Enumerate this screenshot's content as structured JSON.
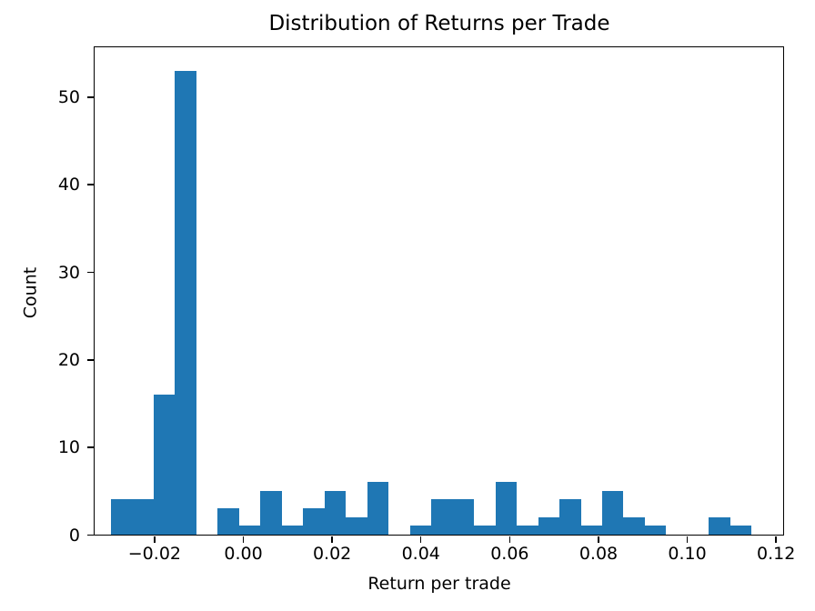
{
  "chart_data": {
    "type": "bar",
    "subtype": "histogram",
    "title": "Distribution of Returns per Trade",
    "xlabel": "Return per trade",
    "ylabel": "Count",
    "bar_color": "#1f77b4",
    "bin_edges": [
      -0.0297,
      -0.02489,
      -0.02008,
      -0.01527,
      -0.01046,
      -0.00565,
      -0.00084,
      0.00397,
      0.00878,
      0.01359,
      0.0184,
      0.02321,
      0.02802,
      0.03283,
      0.03764,
      0.04245,
      0.04726,
      0.05207,
      0.05688,
      0.06169,
      0.0665,
      0.07131,
      0.07612,
      0.08093,
      0.08574,
      0.09055,
      0.09536,
      0.10017,
      0.10498,
      0.10979,
      0.1146
    ],
    "counts": [
      4,
      4,
      16,
      53,
      0,
      3,
      1,
      5,
      1,
      3,
      5,
      2,
      6,
      0,
      1,
      4,
      4,
      1,
      6,
      1,
      2,
      4,
      1,
      5,
      2,
      1,
      0,
      0,
      2,
      1
    ],
    "xlim": [
      -0.0334,
      0.1217
    ],
    "ylim": [
      0,
      55.65
    ],
    "xticks": {
      "values": [
        -0.02,
        0.0,
        0.02,
        0.04,
        0.06,
        0.08,
        0.1,
        0.12
      ],
      "labels": [
        "−0.02",
        "0.00",
        "0.02",
        "0.04",
        "0.06",
        "0.08",
        "0.10",
        "0.12"
      ]
    },
    "yticks": {
      "values": [
        0,
        10,
        20,
        30,
        40,
        50
      ],
      "labels": [
        "0",
        "10",
        "20",
        "30",
        "40",
        "50"
      ]
    },
    "grid": false,
    "legend": false
  }
}
